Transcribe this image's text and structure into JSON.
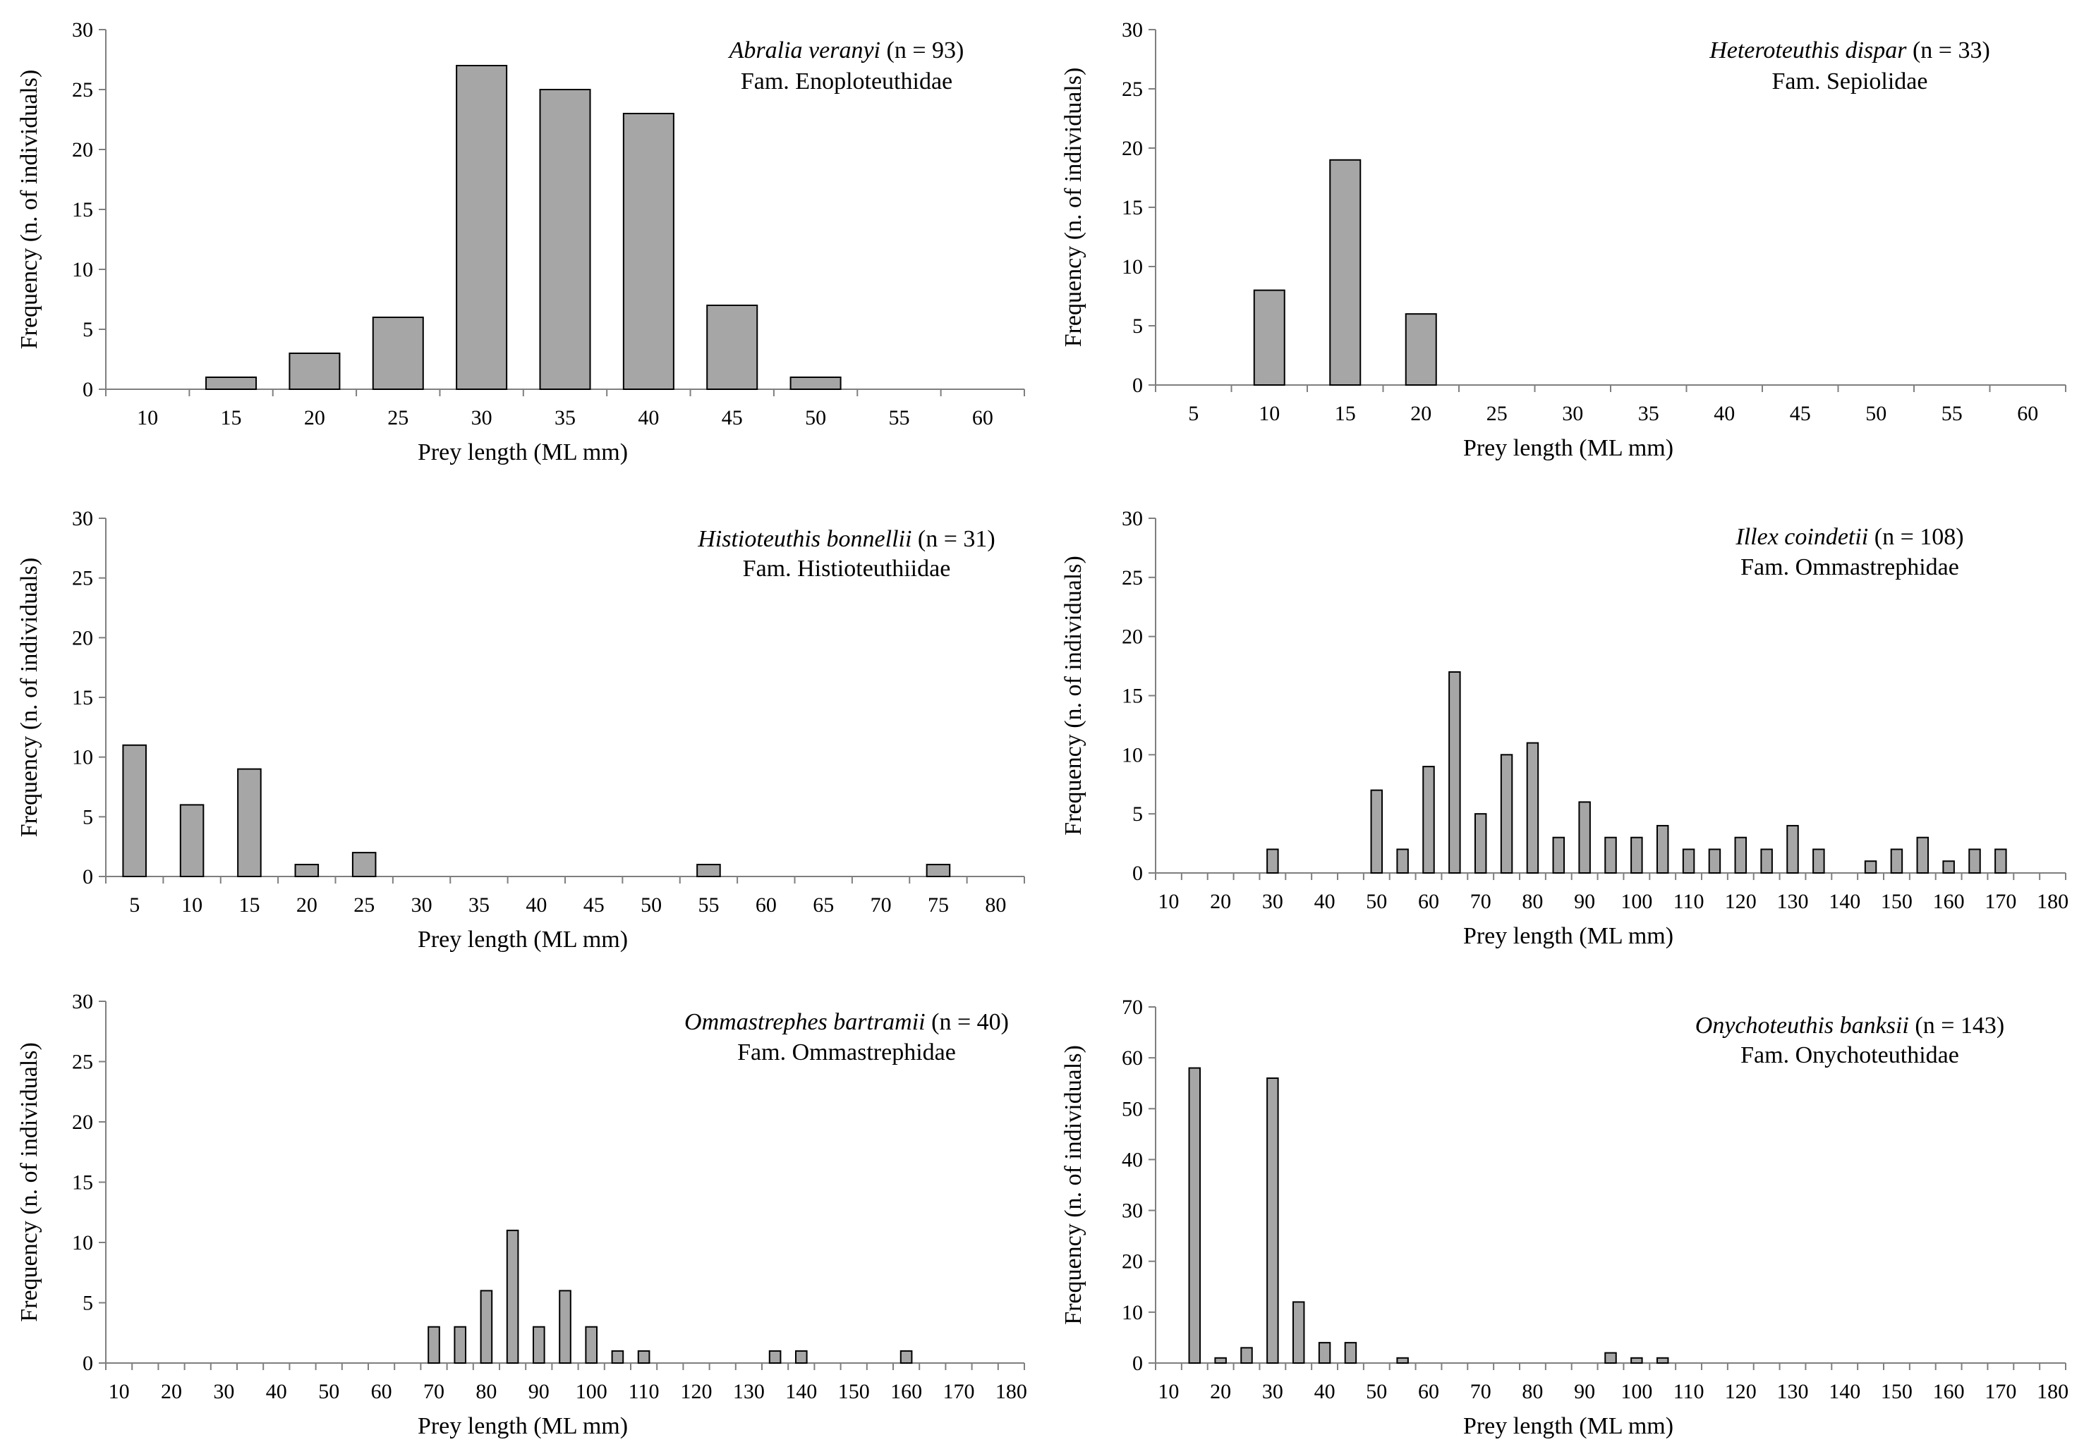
{
  "colors": {
    "bar_fill": "#a6a6a6",
    "bar_stroke": "#000000",
    "axis": "#7f7f7f",
    "text": "#000000"
  },
  "chart_data": [
    {
      "type": "bar",
      "species": "Abralia veranyi",
      "n_label": "(n = 93)",
      "family": "Fam. Enoploteuthidae",
      "xlabel": "Prey length  (ML mm)",
      "ylabel": "Frequency (n. of individuals)",
      "ylim": [
        0,
        30
      ],
      "yticks": [
        0,
        5,
        10,
        15,
        20,
        25,
        30
      ],
      "categories": [
        "10",
        "15",
        "20",
        "25",
        "30",
        "35",
        "40",
        "45",
        "50",
        "55",
        "60"
      ],
      "values": [
        0,
        1,
        3,
        6,
        27,
        25,
        23,
        7,
        1,
        0,
        0
      ]
    },
    {
      "type": "bar",
      "species": "Heteroteuthis dispar",
      "n_label": "(n = 33)",
      "family": "Fam. Sepiolidae",
      "xlabel": "Prey length  (ML mm)",
      "ylabel": "Frequency (n. of individuals)",
      "ylim": [
        0,
        30
      ],
      "yticks": [
        0,
        5,
        10,
        15,
        20,
        25,
        30
      ],
      "categories": [
        "5",
        "10",
        "15",
        "20",
        "25",
        "30",
        "35",
        "40",
        "45",
        "50",
        "55",
        "60"
      ],
      "values": [
        0,
        8,
        19,
        6,
        0,
        0,
        0,
        0,
        0,
        0,
        0,
        0
      ]
    },
    {
      "type": "bar",
      "species": "Histioteuthis bonnellii",
      "n_label": "(n = 31)",
      "family": "Fam. Histioteuthiidae",
      "xlabel": "Prey length  (ML mm)",
      "ylabel": "Frequency (n. of individuals)",
      "ylim": [
        0,
        30
      ],
      "yticks": [
        0,
        5,
        10,
        15,
        20,
        25,
        30
      ],
      "categories": [
        "5",
        "10",
        "15",
        "20",
        "25",
        "30",
        "35",
        "40",
        "45",
        "50",
        "55",
        "60",
        "65",
        "70",
        "75",
        "80"
      ],
      "values": [
        11,
        6,
        9,
        1,
        2,
        0,
        0,
        0,
        0,
        0,
        1,
        0,
        0,
        0,
        1,
        0
      ]
    },
    {
      "type": "bar",
      "species": "Illex coindetii",
      "n_label": "(n = 108)",
      "family": "Fam. Ommastrephidae",
      "xlabel": "Prey length  (ML mm)",
      "ylabel": "Frequency (n. of individuals)",
      "ylim": [
        0,
        30
      ],
      "yticks": [
        0,
        5,
        10,
        15,
        20,
        25,
        30
      ],
      "categories": [
        "10",
        "15",
        "20",
        "25",
        "30",
        "35",
        "40",
        "45",
        "50",
        "55",
        "60",
        "65",
        "70",
        "75",
        "80",
        "85",
        "90",
        "95",
        "100",
        "105",
        "110",
        "115",
        "120",
        "125",
        "130",
        "135",
        "140",
        "145",
        "150",
        "155",
        "160",
        "165",
        "170",
        "175",
        "180"
      ],
      "tick_labels": [
        "10",
        "20",
        "30",
        "40",
        "50",
        "60",
        "70",
        "80",
        "90",
        "100",
        "110",
        "120",
        "130",
        "140",
        "150",
        "160",
        "170",
        "180"
      ],
      "values": [
        0,
        0,
        0,
        0,
        2,
        0,
        0,
        0,
        7,
        2,
        9,
        17,
        5,
        10,
        11,
        3,
        6,
        3,
        3,
        4,
        2,
        2,
        3,
        2,
        4,
        2,
        0,
        1,
        2,
        3,
        1,
        2,
        2,
        0,
        0
      ]
    },
    {
      "type": "bar",
      "species": "Ommastrephes bartramii",
      "n_label": "(n = 40)",
      "family": "Fam. Ommastrephidae",
      "xlabel": "Prey length  (ML mm)",
      "ylabel": "Frequency (n. of individuals)",
      "ylim": [
        0,
        30
      ],
      "yticks": [
        0,
        5,
        10,
        15,
        20,
        25,
        30
      ],
      "categories": [
        "10",
        "15",
        "20",
        "25",
        "30",
        "35",
        "40",
        "45",
        "50",
        "55",
        "60",
        "65",
        "70",
        "75",
        "80",
        "85",
        "90",
        "95",
        "100",
        "105",
        "110",
        "115",
        "120",
        "125",
        "130",
        "135",
        "140",
        "145",
        "150",
        "155",
        "160",
        "165",
        "170",
        "175",
        "180"
      ],
      "tick_labels": [
        "10",
        "20",
        "30",
        "40",
        "50",
        "60",
        "70",
        "80",
        "90",
        "100",
        "110",
        "120",
        "130",
        "140",
        "150",
        "160",
        "170",
        "180"
      ],
      "values": [
        0,
        0,
        0,
        0,
        0,
        0,
        0,
        0,
        0,
        0,
        0,
        0,
        3,
        3,
        6,
        11,
        3,
        6,
        3,
        1,
        1,
        0,
        0,
        0,
        0,
        1,
        1,
        0,
        0,
        0,
        1,
        0,
        0,
        0,
        0
      ]
    },
    {
      "type": "bar",
      "species": "Onychoteuthis banksii",
      "n_label": "(n = 143)",
      "family": "Fam. Onychoteuthidae",
      "xlabel": "Prey length  (ML mm)",
      "ylabel": "Frequency (n. of individuals)",
      "ylim": [
        0,
        70
      ],
      "yticks": [
        0,
        10,
        20,
        30,
        40,
        50,
        60,
        70
      ],
      "categories": [
        "10",
        "15",
        "20",
        "25",
        "30",
        "35",
        "40",
        "45",
        "50",
        "55",
        "60",
        "65",
        "70",
        "75",
        "80",
        "85",
        "90",
        "95",
        "100",
        "105",
        "110",
        "115",
        "120",
        "125",
        "130",
        "135",
        "140",
        "145",
        "150",
        "155",
        "160",
        "165",
        "170",
        "175",
        "180"
      ],
      "tick_labels": [
        "10",
        "20",
        "30",
        "40",
        "50",
        "60",
        "70",
        "80",
        "90",
        "100",
        "110",
        "120",
        "130",
        "140",
        "150",
        "160",
        "170",
        "180"
      ],
      "values": [
        0,
        58,
        1,
        3,
        56,
        12,
        4,
        4,
        0,
        1,
        0,
        0,
        0,
        0,
        0,
        0,
        0,
        2,
        1,
        1,
        0,
        0,
        0,
        0,
        0,
        0,
        0,
        0,
        0,
        0,
        0,
        0,
        0,
        0,
        0
      ]
    }
  ]
}
